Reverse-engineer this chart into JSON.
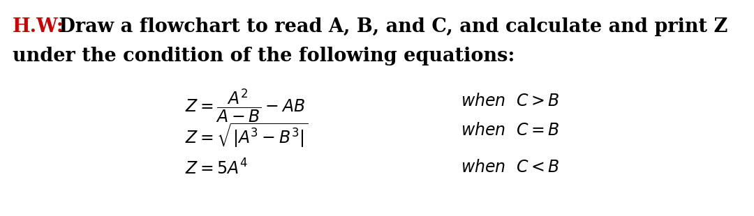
{
  "bg_color": "#ffffff",
  "hw_label": "H.W:",
  "hw_color": "#cc0000",
  "title_text": " Draw a flowchart to read A, B, and C, and calculate and print Z",
  "subtitle_text": "under the condition of the following equations:",
  "title_fontsize": 19.5,
  "eq_fontsize": 17,
  "when_fontsize": 17,
  "fig_width": 10.8,
  "fig_height": 3.1,
  "dpi": 100
}
